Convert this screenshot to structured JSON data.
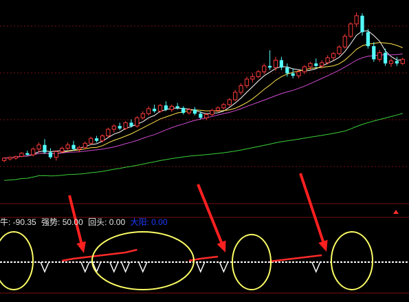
{
  "colors": {
    "background": "#000000",
    "grid": "#7a1010",
    "up_candle": "#ff3b3b",
    "down_candle": "#54ffff",
    "ma_fast": "#ffffff",
    "ma_mid": "#ffe24d",
    "ma_slow": "#d24bd2",
    "ma_long": "#3ad13a",
    "indicator_red": "#ff2a2a",
    "indicator_white": "#ffffff",
    "highlight_ellipse": "#ffff66",
    "annotation_arrow": "#ff2020",
    "label_blue": "#1e3cff"
  },
  "indicator_panel": {
    "label_1": "牛: -90.35",
    "label_2": "强势: 50.00",
    "label_3": "回头: 0.00",
    "label_4": "大阳: 0.00"
  },
  "chart_data": {
    "type": "candlestick",
    "title": "",
    "note": "price axis and dates not shown in screenshot; values in relative units",
    "candles": [
      {
        "o": 10.0,
        "h": 10.4,
        "l": 9.8,
        "c": 10.3
      },
      {
        "o": 10.2,
        "h": 10.5,
        "l": 10.0,
        "c": 10.4
      },
      {
        "o": 10.3,
        "h": 10.6,
        "l": 10.1,
        "c": 10.5
      },
      {
        "o": 10.5,
        "h": 11.0,
        "l": 10.4,
        "c": 10.9
      },
      {
        "o": 10.9,
        "h": 11.2,
        "l": 10.6,
        "c": 10.7
      },
      {
        "o": 10.7,
        "h": 11.6,
        "l": 10.5,
        "c": 11.4
      },
      {
        "o": 11.4,
        "h": 12.2,
        "l": 11.0,
        "c": 11.9
      },
      {
        "o": 11.9,
        "h": 12.6,
        "l": 10.8,
        "c": 11.0
      },
      {
        "o": 11.0,
        "h": 11.5,
        "l": 10.2,
        "c": 10.4
      },
      {
        "o": 10.4,
        "h": 11.2,
        "l": 10.0,
        "c": 11.1
      },
      {
        "o": 11.1,
        "h": 11.7,
        "l": 10.9,
        "c": 11.5
      },
      {
        "o": 11.5,
        "h": 12.2,
        "l": 11.3,
        "c": 11.9
      },
      {
        "o": 11.9,
        "h": 12.4,
        "l": 11.2,
        "c": 11.4
      },
      {
        "o": 11.4,
        "h": 11.8,
        "l": 11.0,
        "c": 11.6
      },
      {
        "o": 11.6,
        "h": 12.3,
        "l": 11.4,
        "c": 12.1
      },
      {
        "o": 12.1,
        "h": 12.9,
        "l": 11.9,
        "c": 12.7
      },
      {
        "o": 12.7,
        "h": 13.0,
        "l": 12.2,
        "c": 12.4
      },
      {
        "o": 12.4,
        "h": 13.2,
        "l": 12.2,
        "c": 13.0
      },
      {
        "o": 13.0,
        "h": 14.0,
        "l": 12.8,
        "c": 13.8
      },
      {
        "o": 13.8,
        "h": 14.4,
        "l": 13.4,
        "c": 14.2
      },
      {
        "o": 14.2,
        "h": 14.6,
        "l": 13.7,
        "c": 13.9
      },
      {
        "o": 13.9,
        "h": 14.8,
        "l": 13.7,
        "c": 14.6
      },
      {
        "o": 14.6,
        "h": 15.0,
        "l": 14.0,
        "c": 14.2
      },
      {
        "o": 14.2,
        "h": 15.4,
        "l": 14.0,
        "c": 15.2
      },
      {
        "o": 15.2,
        "h": 16.0,
        "l": 15.0,
        "c": 15.7
      },
      {
        "o": 15.7,
        "h": 16.6,
        "l": 15.5,
        "c": 16.3
      },
      {
        "o": 16.3,
        "h": 16.8,
        "l": 15.8,
        "c": 16.0
      },
      {
        "o": 16.0,
        "h": 16.9,
        "l": 15.8,
        "c": 16.7
      },
      {
        "o": 16.7,
        "h": 17.2,
        "l": 16.0,
        "c": 16.2
      },
      {
        "o": 16.2,
        "h": 16.8,
        "l": 15.9,
        "c": 16.6
      },
      {
        "o": 16.6,
        "h": 17.0,
        "l": 16.2,
        "c": 16.4
      },
      {
        "o": 16.4,
        "h": 16.6,
        "l": 15.6,
        "c": 15.8
      },
      {
        "o": 15.8,
        "h": 16.4,
        "l": 15.6,
        "c": 16.2
      },
      {
        "o": 16.2,
        "h": 16.5,
        "l": 15.5,
        "c": 15.7
      },
      {
        "o": 15.7,
        "h": 16.0,
        "l": 15.0,
        "c": 15.2
      },
      {
        "o": 15.2,
        "h": 15.8,
        "l": 14.9,
        "c": 15.6
      },
      {
        "o": 15.6,
        "h": 16.3,
        "l": 15.4,
        "c": 16.1
      },
      {
        "o": 16.1,
        "h": 16.6,
        "l": 15.9,
        "c": 16.4
      },
      {
        "o": 16.4,
        "h": 17.0,
        "l": 16.2,
        "c": 16.8
      },
      {
        "o": 16.8,
        "h": 17.6,
        "l": 16.6,
        "c": 17.4
      },
      {
        "o": 17.4,
        "h": 18.6,
        "l": 17.2,
        "c": 18.3
      },
      {
        "o": 18.3,
        "h": 19.4,
        "l": 18.0,
        "c": 19.1
      },
      {
        "o": 19.1,
        "h": 20.2,
        "l": 18.8,
        "c": 19.9
      },
      {
        "o": 19.9,
        "h": 20.6,
        "l": 19.5,
        "c": 20.2
      },
      {
        "o": 20.2,
        "h": 21.0,
        "l": 20.0,
        "c": 20.8
      },
      {
        "o": 20.8,
        "h": 21.8,
        "l": 20.5,
        "c": 21.5
      },
      {
        "o": 21.5,
        "h": 23.4,
        "l": 21.0,
        "c": 21.3
      },
      {
        "o": 21.3,
        "h": 22.6,
        "l": 20.9,
        "c": 22.2
      },
      {
        "o": 22.2,
        "h": 22.6,
        "l": 21.0,
        "c": 21.3
      },
      {
        "o": 21.3,
        "h": 21.8,
        "l": 20.2,
        "c": 20.6
      },
      {
        "o": 20.6,
        "h": 21.2,
        "l": 20.0,
        "c": 20.3
      },
      {
        "o": 20.3,
        "h": 21.0,
        "l": 20.0,
        "c": 20.8
      },
      {
        "o": 20.8,
        "h": 21.6,
        "l": 20.5,
        "c": 21.4
      },
      {
        "o": 21.4,
        "h": 22.0,
        "l": 21.0,
        "c": 21.8
      },
      {
        "o": 21.8,
        "h": 22.4,
        "l": 21.2,
        "c": 21.5
      },
      {
        "o": 21.5,
        "h": 22.2,
        "l": 21.2,
        "c": 21.9
      },
      {
        "o": 21.9,
        "h": 22.8,
        "l": 21.7,
        "c": 22.5
      },
      {
        "o": 22.5,
        "h": 23.2,
        "l": 22.2,
        "c": 23.0
      },
      {
        "o": 23.0,
        "h": 24.0,
        "l": 22.8,
        "c": 23.8
      },
      {
        "o": 23.8,
        "h": 25.4,
        "l": 23.6,
        "c": 25.1
      },
      {
        "o": 25.1,
        "h": 26.8,
        "l": 24.9,
        "c": 26.6
      },
      {
        "o": 26.6,
        "h": 28.0,
        "l": 26.2,
        "c": 27.6
      },
      {
        "o": 27.6,
        "h": 27.9,
        "l": 25.2,
        "c": 25.6
      },
      {
        "o": 25.6,
        "h": 26.0,
        "l": 23.6,
        "c": 23.9
      },
      {
        "o": 23.9,
        "h": 24.4,
        "l": 22.0,
        "c": 22.3
      },
      {
        "o": 22.3,
        "h": 23.4,
        "l": 22.0,
        "c": 23.1
      },
      {
        "o": 23.1,
        "h": 23.6,
        "l": 21.5,
        "c": 21.8
      },
      {
        "o": 21.8,
        "h": 22.4,
        "l": 21.4,
        "c": 22.1
      },
      {
        "o": 22.1,
        "h": 22.6,
        "l": 21.5,
        "c": 21.8
      },
      {
        "o": 21.8,
        "h": 22.5,
        "l": 21.6,
        "c": 22.3
      }
    ],
    "indicator": {
      "red_series": [
        0,
        0,
        0,
        0,
        0,
        0,
        0,
        0,
        0,
        0,
        0.2,
        0.35,
        0.5,
        0.6,
        0.7,
        0.8,
        0.9,
        1.0,
        1.1,
        1.2,
        1.3,
        1.4,
        1.6,
        1.8,
        0,
        0,
        0,
        0,
        0,
        0,
        0,
        0,
        0.2,
        0.35,
        0.5,
        0.6,
        0.7,
        0.8,
        0,
        0,
        0,
        0,
        0,
        0,
        0,
        0,
        0.1,
        0.2,
        0.3,
        0.4,
        0.5,
        0.6,
        0.7,
        0.8,
        0.9,
        1.0,
        0,
        0,
        0,
        0,
        0,
        0,
        0,
        0,
        0,
        0,
        0,
        0,
        0,
        0
      ],
      "white_series": [
        0,
        0,
        0,
        0,
        0,
        0,
        0,
        -1,
        0,
        0,
        0,
        0,
        0,
        0,
        -1,
        0,
        -1,
        0,
        0,
        -1,
        0,
        -1,
        0,
        0,
        -1,
        0,
        0,
        0,
        0,
        0,
        0,
        0,
        0,
        0,
        -1,
        0,
        0,
        0,
        -1,
        0,
        0,
        0,
        0,
        0,
        0,
        0,
        0,
        0,
        0,
        0,
        0,
        0,
        0,
        0,
        -1,
        0,
        0,
        0,
        0,
        0,
        0,
        0,
        0,
        0,
        0,
        0,
        0,
        0,
        0,
        0
      ]
    }
  }
}
